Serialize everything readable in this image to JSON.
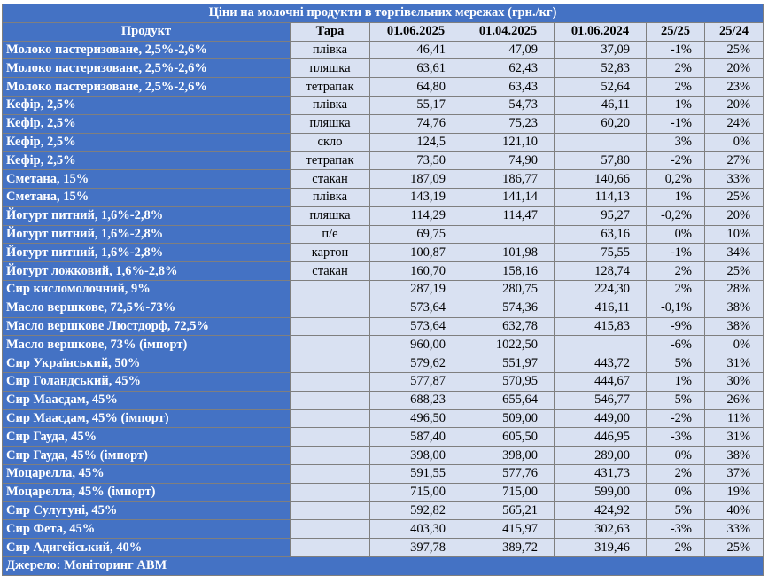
{
  "title": "Ціни на молочні продукти в торгівельних мережах (грн./кг)",
  "columns": [
    "Продукт",
    "Тара",
    "01.06.2025",
    "01.04.2025",
    "01.06.2024",
    "25/25",
    "25/24"
  ],
  "rows": [
    {
      "product": "Молоко пастеризоване, 2,5%-2,6%",
      "pack": "плівка",
      "d1": "46,41",
      "d2": "47,09",
      "d3": "37,09",
      "c1": "-1%",
      "c2": "25%"
    },
    {
      "product": "Молоко пастеризоване, 2,5%-2,6%",
      "pack": "пляшка",
      "d1": "63,61",
      "d2": "62,43",
      "d3": "52,83",
      "c1": "2%",
      "c2": "20%"
    },
    {
      "product": "Молоко пастеризоване, 2,5%-2,6%",
      "pack": "тетрапак",
      "d1": "64,80",
      "d2": "63,43",
      "d3": "52,64",
      "c1": "2%",
      "c2": "23%"
    },
    {
      "product": "Кефір, 2,5%",
      "pack": "плівка",
      "d1": "55,17",
      "d2": "54,73",
      "d3": "46,11",
      "c1": "1%",
      "c2": "20%"
    },
    {
      "product": "Кефір, 2,5%",
      "pack": "пляшка",
      "d1": "74,76",
      "d2": "75,23",
      "d3": "60,20",
      "c1": "-1%",
      "c2": "24%"
    },
    {
      "product": "Кефір, 2,5%",
      "pack": "скло",
      "d1": "124,5",
      "d2": "121,10",
      "d3": "",
      "c1": "3%",
      "c2": "0%"
    },
    {
      "product": "Кефір, 2,5%",
      "pack": "тетрапак",
      "d1": "73,50",
      "d2": "74,90",
      "d3": "57,80",
      "c1": "-2%",
      "c2": "27%"
    },
    {
      "product": "Сметана, 15%",
      "pack": "стакан",
      "d1": "187,09",
      "d2": "186,77",
      "d3": "140,66",
      "c1": "0,2%",
      "c2": "33%"
    },
    {
      "product": "Сметана, 15%",
      "pack": "плівка",
      "d1": "143,19",
      "d2": "141,14",
      "d3": "114,13",
      "c1": "1%",
      "c2": "25%"
    },
    {
      "product": "Йогурт питний, 1,6%-2,8%",
      "pack": "пляшка",
      "d1": "114,29",
      "d2": "114,47",
      "d3": "95,27",
      "c1": "-0,2%",
      "c2": "20%"
    },
    {
      "product": "Йогурт питний, 1,6%-2,8%",
      "pack": "п/е",
      "d1": "69,75",
      "d2": "",
      "d3": "63,16",
      "c1": "0%",
      "c2": "10%"
    },
    {
      "product": "Йогурт питний, 1,6%-2,8%",
      "pack": "картон",
      "d1": "100,87",
      "d2": "101,98",
      "d3": "75,55",
      "c1": "-1%",
      "c2": "34%"
    },
    {
      "product": "Йогурт ложковий, 1,6%-2,8%",
      "pack": "стакан",
      "d1": "160,70",
      "d2": "158,16",
      "d3": "128,74",
      "c1": "2%",
      "c2": "25%"
    },
    {
      "product": "Сир кисломолочний, 9%",
      "pack": "",
      "d1": "287,19",
      "d2": "280,75",
      "d3": "224,30",
      "c1": "2%",
      "c2": "28%"
    },
    {
      "product": "Масло вершкове, 72,5%-73%",
      "pack": "",
      "d1": "573,64",
      "d2": "574,36",
      "d3": "416,11",
      "c1": "-0,1%",
      "c2": "38%"
    },
    {
      "product": "Масло вершкове Люстдорф, 72,5%",
      "pack": "",
      "d1": "573,64",
      "d2": "632,78",
      "d3": "415,83",
      "c1": "-9%",
      "c2": "38%"
    },
    {
      "product": "Масло вершкове, 73% (імпорт)",
      "pack": "",
      "d1": "960,00",
      "d2": "1022,50",
      "d3": "",
      "c1": "-6%",
      "c2": "0%"
    },
    {
      "product": "Сир Український, 50%",
      "pack": "",
      "d1": "579,62",
      "d2": "551,97",
      "d3": "443,72",
      "c1": "5%",
      "c2": "31%"
    },
    {
      "product": "Сир Голандський, 45%",
      "pack": "",
      "d1": "577,87",
      "d2": "570,95",
      "d3": "444,67",
      "c1": "1%",
      "c2": "30%"
    },
    {
      "product": "Сир Маасдам, 45%",
      "pack": "",
      "d1": "688,23",
      "d2": "655,64",
      "d3": "546,77",
      "c1": "5%",
      "c2": "26%"
    },
    {
      "product": "Сир Маасдам, 45% (імпорт)",
      "pack": "",
      "d1": "496,50",
      "d2": "509,00",
      "d3": "449,00",
      "c1": "-2%",
      "c2": "11%"
    },
    {
      "product": "Сир Гауда, 45%",
      "pack": "",
      "d1": "587,40",
      "d2": "605,50",
      "d3": "446,95",
      "c1": "-3%",
      "c2": "31%"
    },
    {
      "product": "Сир Гауда, 45% (імпорт)",
      "pack": "",
      "d1": "398,00",
      "d2": "398,00",
      "d3": "289,00",
      "c1": "0%",
      "c2": "38%"
    },
    {
      "product": "Моцарелла, 45%",
      "pack": "",
      "d1": "591,55",
      "d2": "577,76",
      "d3": "431,73",
      "c1": "2%",
      "c2": "37%"
    },
    {
      "product": "Моцарелла, 45% (імпорт)",
      "pack": "",
      "d1": "715,00",
      "d2": "715,00",
      "d3": "599,00",
      "c1": "0%",
      "c2": "19%"
    },
    {
      "product": "Сир Сулугуні, 45%",
      "pack": "",
      "d1": "592,82",
      "d2": "565,21",
      "d3": "424,92",
      "c1": "5%",
      "c2": "40%"
    },
    {
      "product": "Сир Фета, 45%",
      "pack": "",
      "d1": "403,30",
      "d2": "415,97",
      "d3": "302,63",
      "c1": "-3%",
      "c2": "33%"
    },
    {
      "product": "Сир Адигейський, 40%",
      "pack": "",
      "d1": "397,78",
      "d2": "389,72",
      "d3": "319,46",
      "c1": "2%",
      "c2": "25%"
    }
  ],
  "source": "Джерело: Моніторинг АВМ",
  "colors": {
    "header_blue": "#4472c4",
    "cell_light": "#d9e1f2"
  }
}
